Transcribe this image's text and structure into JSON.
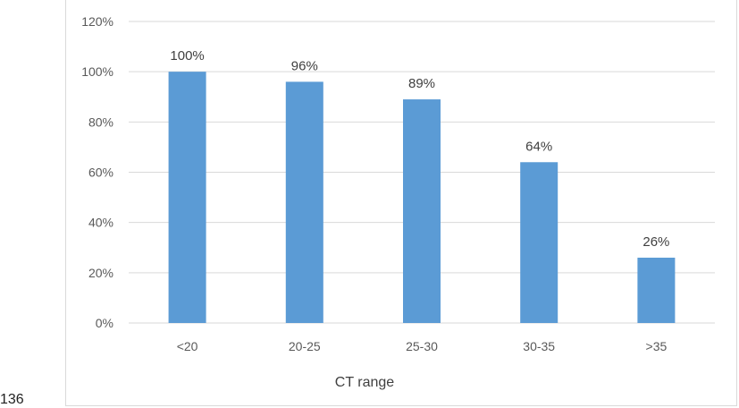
{
  "page_number": "136",
  "chart_data": {
    "type": "bar",
    "categories": [
      "<20",
      "20-25",
      "25-30",
      "30-35",
      ">35"
    ],
    "values": [
      100,
      96,
      89,
      64,
      26
    ],
    "value_labels": [
      "100%",
      "96%",
      "89%",
      "64%",
      "26%"
    ],
    "y_ticks": [
      "0%",
      "20%",
      "40%",
      "60%",
      "80%",
      "100%",
      "120%"
    ],
    "y_tick_values": [
      0,
      20,
      40,
      60,
      80,
      100,
      120
    ],
    "xlabel": "CT range",
    "ylabel": "",
    "ylim": [
      0,
      120
    ],
    "grid": true,
    "legend": "none",
    "bar_color": "#5b9bd5",
    "grid_color": "#d9d9d9"
  }
}
